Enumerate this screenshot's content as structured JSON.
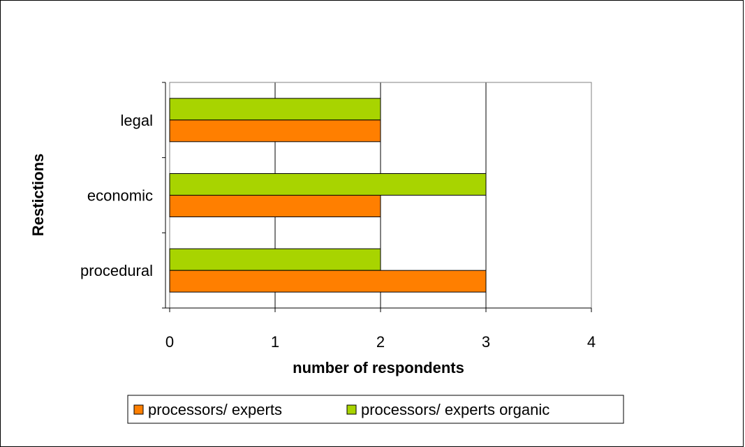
{
  "chart_data": {
    "type": "bar",
    "orientation": "horizontal",
    "title": "",
    "xlabel": "number of respondents",
    "ylabel": "Restictions",
    "categories": [
      "legal",
      "economic",
      "procedural"
    ],
    "series": [
      {
        "name": "processors/ experts",
        "color": "#ff7f00",
        "values": [
          2,
          2,
          3
        ]
      },
      {
        "name": "processors/ experts organic",
        "color": "#a8d400",
        "values": [
          2,
          3,
          2
        ]
      }
    ],
    "xlim": [
      0,
      4
    ],
    "xticks": [
      "0",
      "1",
      "2",
      "3",
      "4"
    ],
    "grid": "vertical",
    "legend": "bottom"
  }
}
